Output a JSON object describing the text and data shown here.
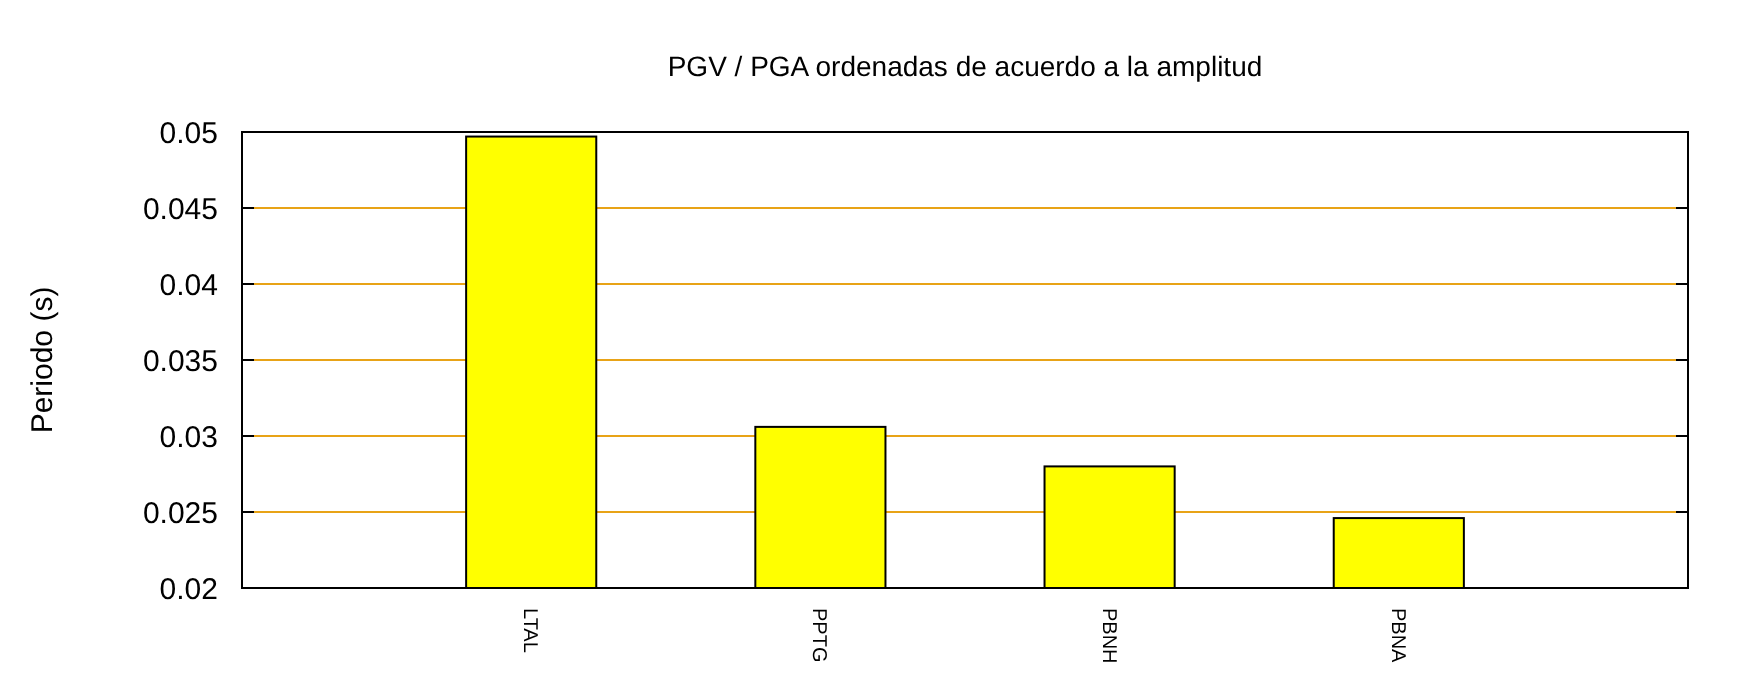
{
  "chart_data": {
    "type": "bar",
    "title": "PGV / PGA ordenadas de acuerdo a la amplitud",
    "ylabel": "Periodo (s)",
    "categories": [
      "LTAL",
      "PPTG",
      "PBNH",
      "PBNA"
    ],
    "values": [
      0.0497,
      0.0306,
      0.028,
      0.0246
    ],
    "color": "#ffff00",
    "ylim": [
      0.02,
      0.05
    ],
    "yticks": [
      0.02,
      0.025,
      0.03,
      0.035,
      0.04,
      0.045,
      0.05
    ],
    "grid": "y"
  }
}
